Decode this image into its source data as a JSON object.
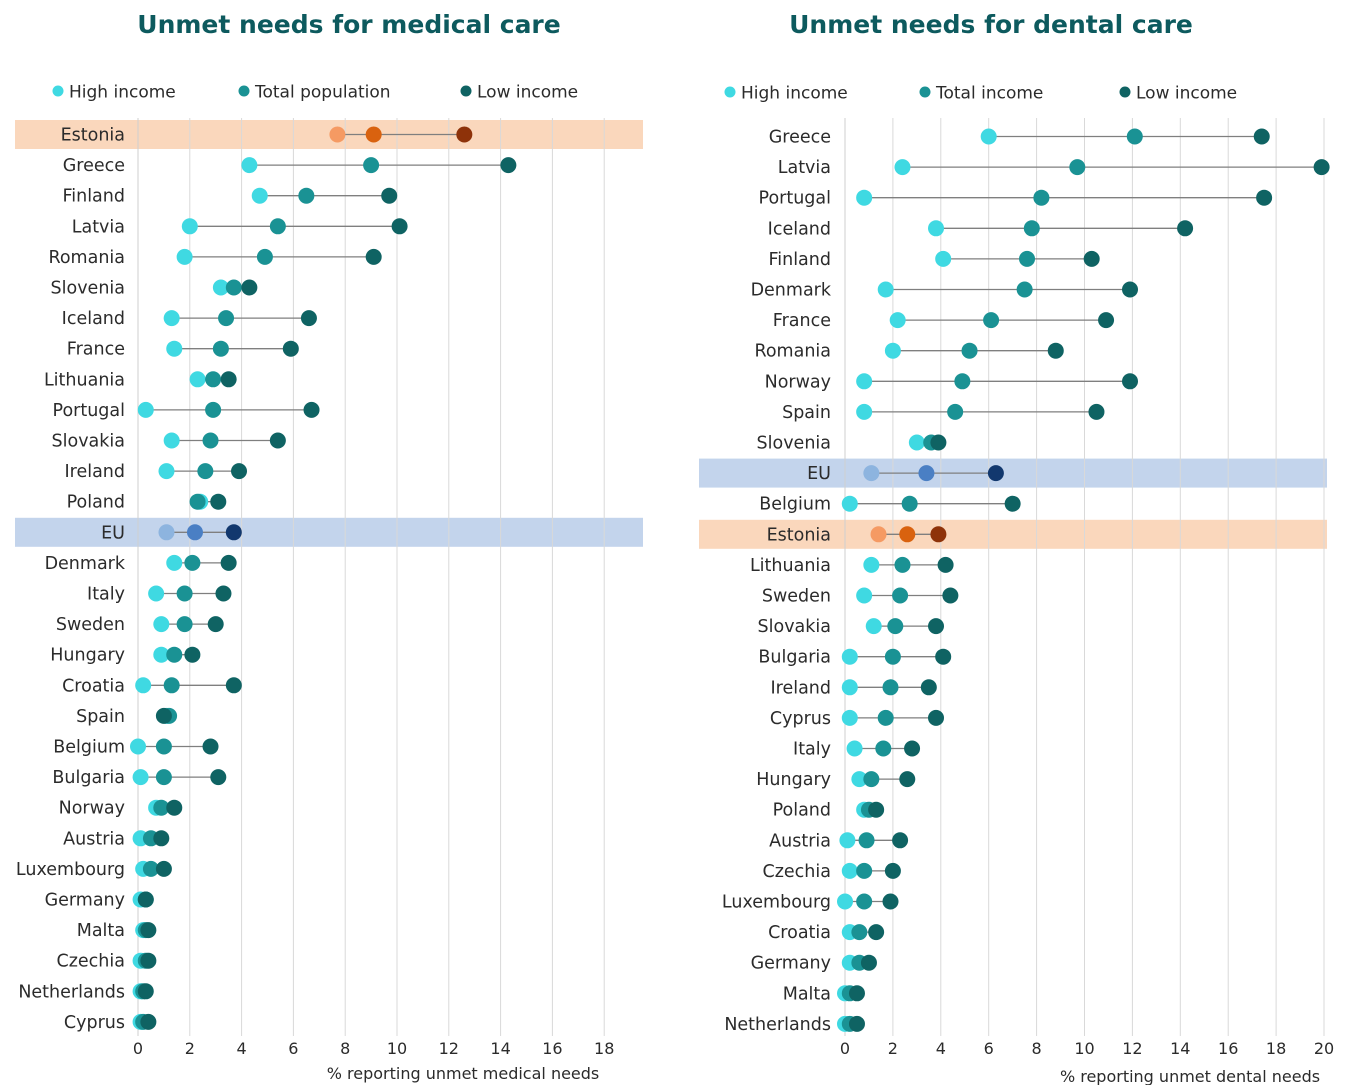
{
  "colors": {
    "high": "#3fd9e2",
    "total": "#1a9294",
    "low": "#0f6363",
    "connector": "#7f7f7f",
    "grid": "#d9d9d9",
    "estonia_band": "#fad7bc",
    "eu_band": "#c3d4ec",
    "estonia_high": "#f59a63",
    "estonia_total": "#d9620f",
    "estonia_low": "#8e3209",
    "eu_high": "#8db4df",
    "eu_total": "#4a7fc4",
    "eu_low": "#12386e"
  },
  "chart_data": [
    {
      "type": "dot-range",
      "title": "Unmet needs for medical care",
      "xlabel": "% reporting unmet medical needs",
      "xlim": [
        0,
        19
      ],
      "ticks": [
        0,
        2,
        4,
        6,
        8,
        10,
        12,
        14,
        16,
        18
      ],
      "legend": [
        "High income",
        "Total population",
        "Low income"
      ],
      "legend_position": "top",
      "grid": true,
      "highlight": {
        "Estonia": "estonia",
        "EU": "eu"
      },
      "categories": [
        "Estonia",
        "Greece",
        "Finland",
        "Latvia",
        "Romania",
        "Slovenia",
        "Iceland",
        "France",
        "Lithuania",
        "Portugal",
        "Slovakia",
        "Ireland",
        "Poland",
        "EU",
        "Denmark",
        "Italy",
        "Sweden",
        "Hungary",
        "Croatia",
        "Spain",
        "Belgium",
        "Bulgaria",
        "Norway",
        "Austria",
        "Luxembourg",
        "Germany",
        "Malta",
        "Czechia",
        "Netherlands",
        "Cyprus"
      ],
      "series": [
        {
          "name": "High income",
          "values": [
            7.7,
            4.3,
            4.7,
            2.0,
            1.8,
            3.2,
            1.3,
            1.4,
            2.3,
            0.3,
            1.3,
            1.1,
            2.4,
            1.1,
            1.4,
            0.7,
            0.9,
            0.9,
            0.2,
            1.1,
            0.0,
            0.1,
            0.7,
            0.1,
            0.2,
            0.1,
            0.2,
            0.1,
            0.1,
            0.1
          ]
        },
        {
          "name": "Total population",
          "values": [
            9.1,
            9.0,
            6.5,
            5.4,
            4.9,
            3.7,
            3.4,
            3.2,
            2.9,
            2.9,
            2.8,
            2.6,
            2.3,
            2.2,
            2.1,
            1.8,
            1.8,
            1.4,
            1.3,
            1.2,
            1.0,
            1.0,
            0.9,
            0.5,
            0.5,
            0.3,
            0.3,
            0.3,
            0.2,
            0.2
          ]
        },
        {
          "name": "Low income",
          "values": [
            12.6,
            14.3,
            9.7,
            10.1,
            9.1,
            4.3,
            6.6,
            5.9,
            3.5,
            6.7,
            5.4,
            3.9,
            3.1,
            3.7,
            3.5,
            3.3,
            3.0,
            2.1,
            3.7,
            1.0,
            2.8,
            3.1,
            1.4,
            0.9,
            1.0,
            0.3,
            0.4,
            0.4,
            0.3,
            0.4
          ]
        }
      ]
    },
    {
      "type": "dot-range",
      "title": "Unmet needs for dental care",
      "xlabel": "% reporting unmet dental needs",
      "xlim": [
        0,
        20
      ],
      "ticks": [
        0,
        2,
        4,
        6,
        8,
        10,
        12,
        14,
        16,
        18,
        20
      ],
      "legend": [
        "High income",
        "Total income",
        "Low income"
      ],
      "legend_position": "top",
      "grid": true,
      "highlight": {
        "Estonia": "estonia",
        "EU": "eu"
      },
      "categories": [
        "Greece",
        "Latvia",
        "Portugal",
        "Iceland",
        "Finland",
        "Denmark",
        "France",
        "Romania",
        "Norway",
        "Spain",
        "Slovenia",
        "EU",
        "Belgium",
        "Estonia",
        "Lithuania",
        "Sweden",
        "Slovakia",
        "Bulgaria",
        "Ireland",
        "Cyprus",
        "Italy",
        "Hungary",
        "Poland",
        "Austria",
        "Czechia",
        "Luxembourg",
        "Croatia",
        "Germany",
        "Malta",
        "Netherlands"
      ],
      "series": [
        {
          "name": "High income",
          "values": [
            6.0,
            2.4,
            0.8,
            3.8,
            4.1,
            1.7,
            2.2,
            2.0,
            0.8,
            0.8,
            3.0,
            1.1,
            0.2,
            1.4,
            1.1,
            0.8,
            1.2,
            0.2,
            0.2,
            0.2,
            0.4,
            0.6,
            0.8,
            0.1,
            0.2,
            0.0,
            0.2,
            0.2,
            0.0,
            0.0
          ]
        },
        {
          "name": "Total income",
          "values": [
            12.1,
            9.7,
            8.2,
            7.8,
            7.6,
            7.5,
            6.1,
            5.2,
            4.9,
            4.6,
            3.6,
            3.4,
            2.7,
            2.6,
            2.4,
            2.3,
            2.1,
            2.0,
            1.9,
            1.7,
            1.6,
            1.1,
            1.0,
            0.9,
            0.8,
            0.8,
            0.6,
            0.6,
            0.2,
            0.2
          ]
        },
        {
          "name": "Low income",
          "values": [
            17.4,
            19.9,
            17.5,
            14.2,
            10.3,
            11.9,
            10.9,
            8.8,
            11.9,
            10.5,
            3.9,
            6.3,
            7.0,
            3.9,
            4.2,
            4.4,
            3.8,
            4.1,
            3.5,
            3.8,
            2.8,
            2.6,
            1.3,
            2.3,
            2.0,
            1.9,
            1.3,
            1.0,
            0.5,
            0.5
          ]
        }
      ]
    }
  ]
}
